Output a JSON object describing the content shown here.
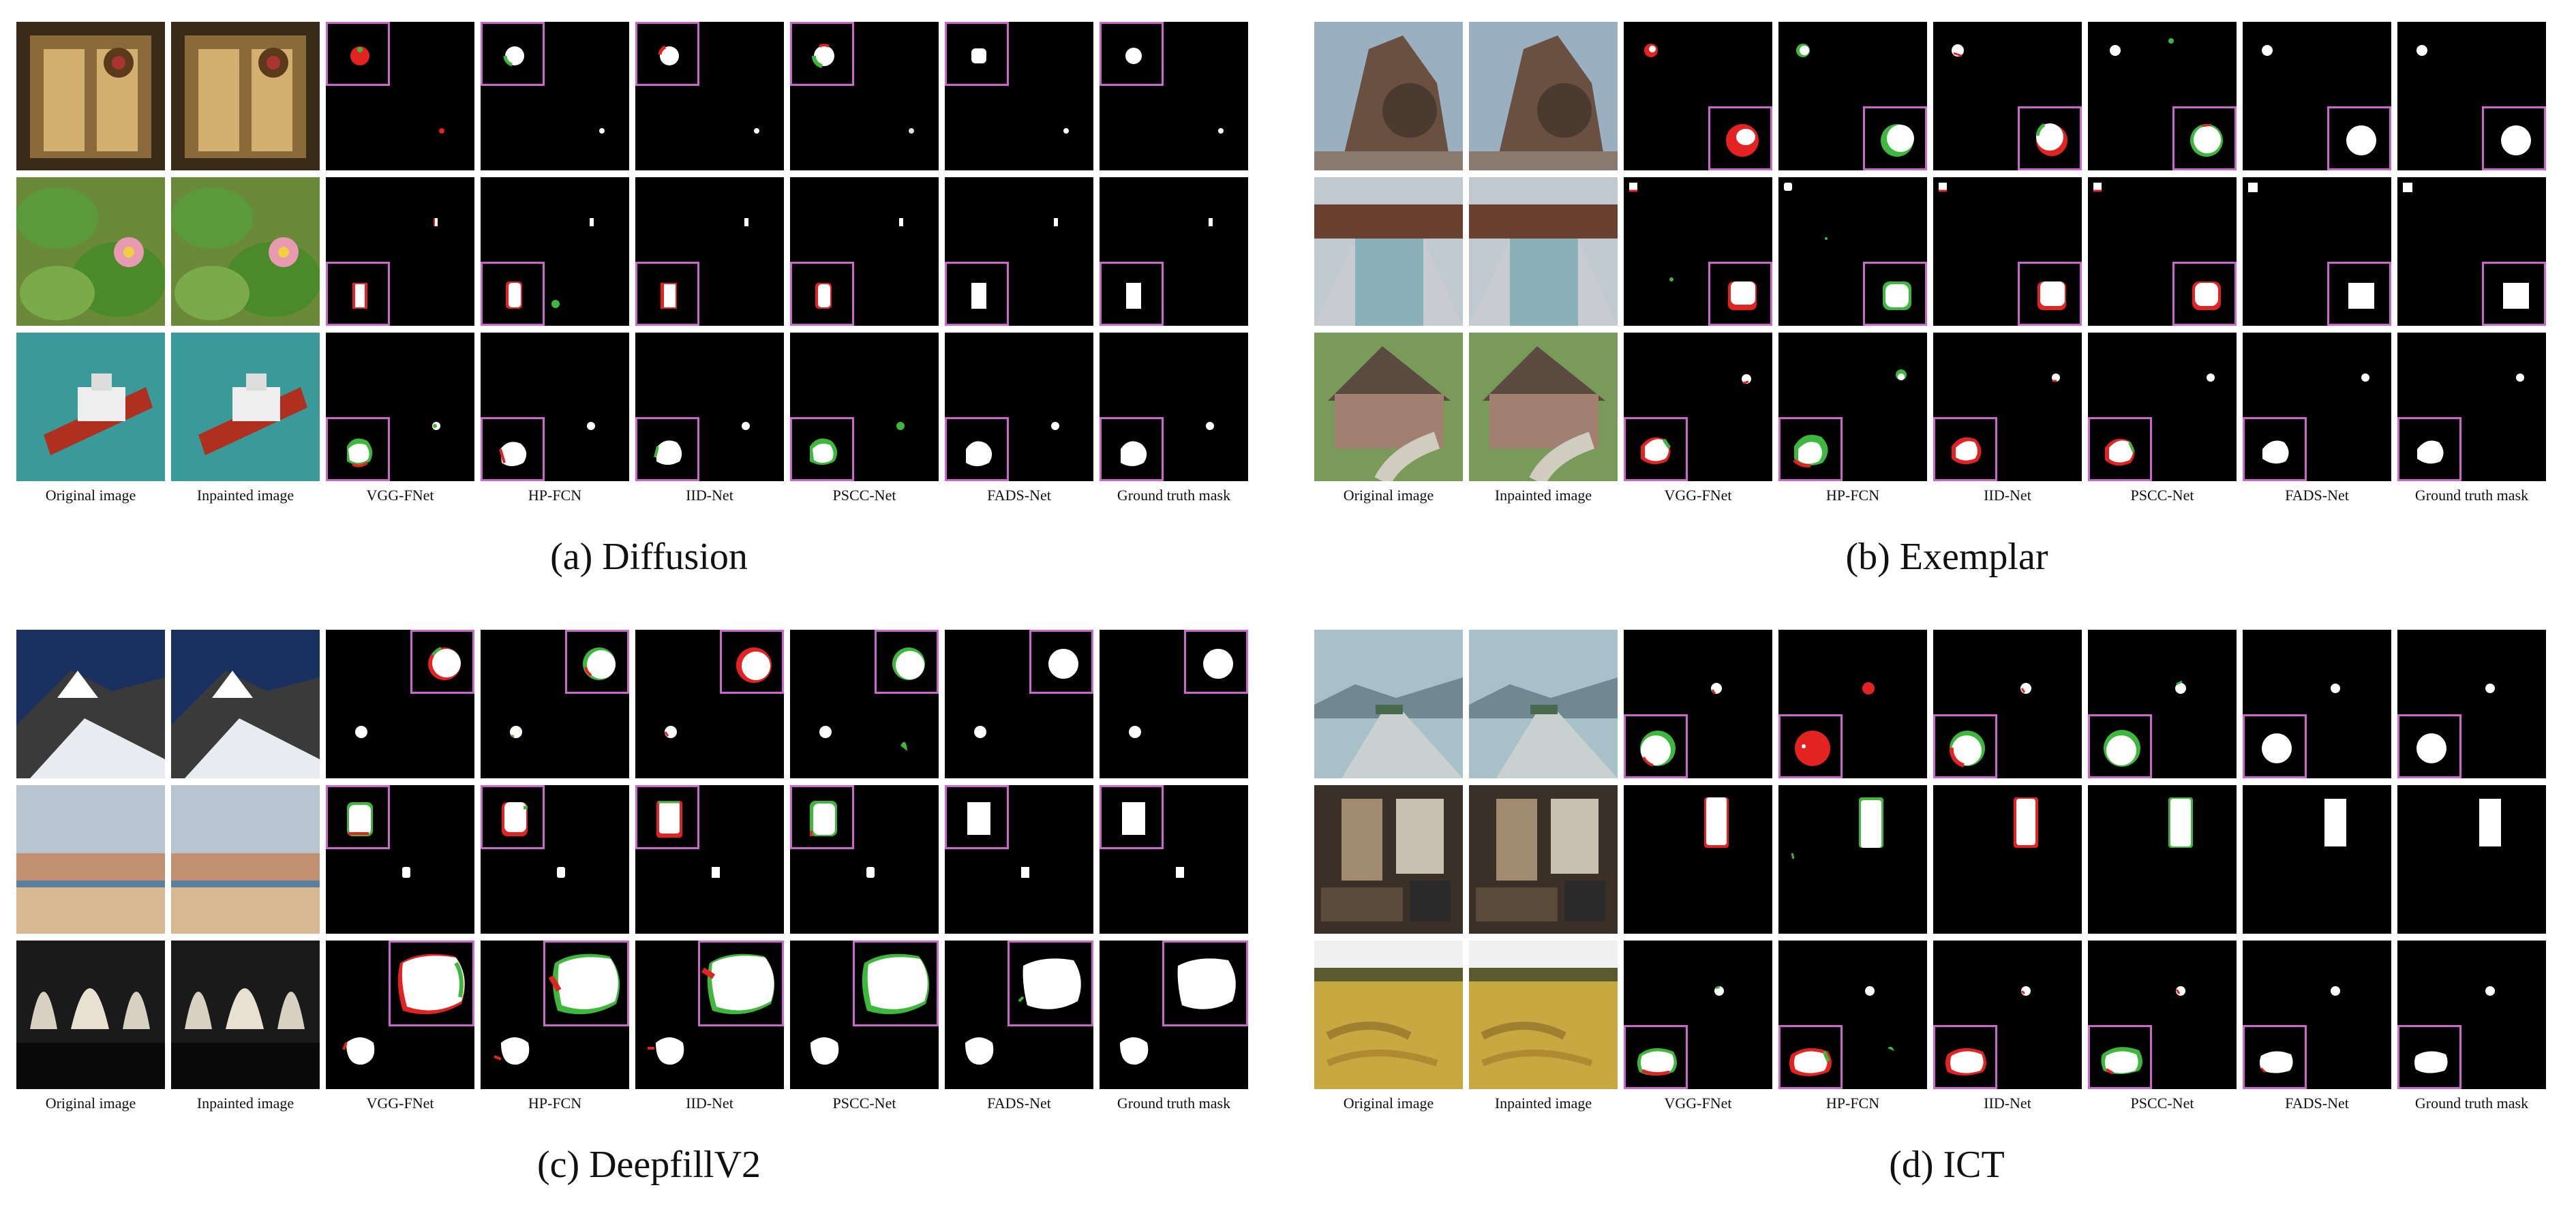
{
  "column_labels": [
    "Original image",
    "Inpainted image",
    "VGG-FNet",
    "HP-FCN",
    "IID-Net",
    "PSCC-Net",
    "FADS-Net",
    "Ground truth mask"
  ],
  "colors": {
    "true_positive": "#ffffff",
    "false_negative": "#e32222",
    "false_positive": "#3db83d",
    "background": "#000000",
    "inset_border": "#cc66cc"
  },
  "panels": [
    {
      "caption": "(a)  Diffusion",
      "scenes": [
        "storefront-window-with-wreath",
        "water-lily-pads-with-pink-flower",
        "ship-on-green-sea"
      ]
    },
    {
      "caption": "(b)  Exemplar",
      "scenes": [
        "old-stone-watermill",
        "swimming-pool-with-deck",
        "house-with-curved-path"
      ]
    },
    {
      "caption": "(c)  DeepfillV2",
      "scenes": [
        "snowy-mountain-slope",
        "crowded-beach-with-town",
        "church-interior-with-arches"
      ]
    },
    {
      "caption": "(d)  ICT",
      "scenes": [
        "highway-with-mountains",
        "hotel-room-interior",
        "golden-field-with-trees"
      ]
    }
  ]
}
